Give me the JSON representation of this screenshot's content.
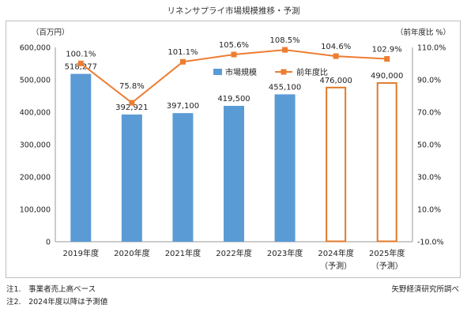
{
  "chart_data": {
    "type": "bar+line",
    "title": "リネンサプライ市場規模推移・予測",
    "left_axis_unit": "（百万円）",
    "right_axis_unit": "（前年度比 %）",
    "left_ylim": [
      0,
      600000
    ],
    "left_ticks": [
      "0",
      "100,000",
      "200,000",
      "300,000",
      "400,000",
      "500,000",
      "600,000"
    ],
    "right_ylim": [
      -10,
      110
    ],
    "right_ticks": [
      "-10.0%",
      "10.0%",
      "30.0%",
      "50.0%",
      "70.0%",
      "90.0%",
      "110.0%"
    ],
    "categories": [
      {
        "year": "2019年度",
        "sub": ""
      },
      {
        "year": "2020年度",
        "sub": ""
      },
      {
        "year": "2021年度",
        "sub": ""
      },
      {
        "year": "2022年度",
        "sub": ""
      },
      {
        "year": "2023年度",
        "sub": ""
      },
      {
        "year": "2024年度",
        "sub": "（予測）"
      },
      {
        "year": "2025年度",
        "sub": "（予測）"
      }
    ],
    "series": [
      {
        "name": "市場規模",
        "kind": "bar",
        "axis": "left",
        "color": "#5b9bd5",
        "forecast_outline_color": "#e07a2a",
        "values": [
          518277,
          392921,
          397100,
          419500,
          455100,
          476000,
          490000
        ],
        "labels": [
          "518,277",
          "392,921",
          "397,100",
          "419,500",
          "455,100",
          "476,000",
          "490,000"
        ],
        "forecast": [
          false,
          false,
          false,
          false,
          false,
          true,
          true
        ]
      },
      {
        "name": "前年度比",
        "kind": "line",
        "axis": "right",
        "color": "#ed7d31",
        "values": [
          100.1,
          75.8,
          101.1,
          105.6,
          108.5,
          104.6,
          102.9
        ],
        "labels": [
          "100.1%",
          "75.8%",
          "101.1%",
          "105.6%",
          "108.5%",
          "104.6%",
          "102.9%"
        ]
      }
    ],
    "legend_position": "top-center",
    "grid": false
  },
  "notes": [
    "注1.　事業者売上高ベース",
    "注2.　2024年度以降は予測値"
  ],
  "source": "矢野経済研究所調べ"
}
